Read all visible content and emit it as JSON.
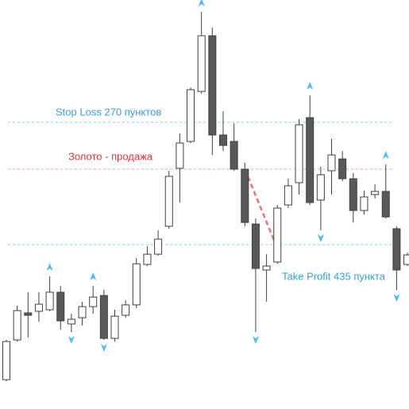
{
  "chart_data": {
    "type": "candlestick",
    "ylim": [
      -1382,
      975
    ],
    "up_color": "#ffffff",
    "down_color": "#595959",
    "outline_color": "#404040",
    "arrow_color": "#4fb8ec",
    "candles": [
      {
        "o": -1213,
        "h": -984,
        "l": -1222,
        "c": -993
      },
      {
        "o": -984,
        "h": -787,
        "l": -993,
        "c": -815
      },
      {
        "o": -828,
        "h": -709,
        "l": -970,
        "c": -842
      },
      {
        "o": -819,
        "h": -709,
        "l": -879,
        "c": -778
      },
      {
        "o": -810,
        "h": -618,
        "l": -819,
        "c": -709
      },
      {
        "o": -709,
        "h": -673,
        "l": -924,
        "c": -874
      },
      {
        "o": -892,
        "h": -833,
        "l": -938,
        "c": -865
      },
      {
        "o": -856,
        "h": -764,
        "l": -901,
        "c": -792
      },
      {
        "o": -792,
        "h": -673,
        "l": -833,
        "c": -737
      },
      {
        "o": -728,
        "h": -696,
        "l": -984,
        "c": -975
      },
      {
        "o": -975,
        "h": -810,
        "l": -993,
        "c": -847
      },
      {
        "o": -842,
        "h": -755,
        "l": -856,
        "c": -782
      },
      {
        "o": -782,
        "h": -513,
        "l": -801,
        "c": -545
      },
      {
        "o": -549,
        "h": -444,
        "l": -558,
        "c": -490
      },
      {
        "o": -490,
        "h": -352,
        "l": -499,
        "c": -403
      },
      {
        "o": -329,
        "h": -9,
        "l": -343,
        "c": -41
      },
      {
        "o": 5,
        "h": 206,
        "l": -192,
        "c": 151
      },
      {
        "o": 160,
        "h": 471,
        "l": 151,
        "c": 458
      },
      {
        "o": 448,
        "h": 906,
        "l": 435,
        "c": 769
      },
      {
        "o": 769,
        "h": 815,
        "l": 82,
        "c": 197
      },
      {
        "o": 197,
        "h": 334,
        "l": 105,
        "c": 137
      },
      {
        "o": 160,
        "h": 265,
        "l": -9,
        "c": 0
      },
      {
        "o": 0,
        "h": 37,
        "l": -329,
        "c": -307
      },
      {
        "o": -316,
        "h": -284,
        "l": -938,
        "c": -572
      },
      {
        "o": -581,
        "h": -490,
        "l": -764,
        "c": -558
      },
      {
        "o": -535,
        "h": -206,
        "l": -545,
        "c": -224
      },
      {
        "o": -206,
        "h": -55,
        "l": -224,
        "c": -96
      },
      {
        "o": -78,
        "h": 288,
        "l": -146,
        "c": 256
      },
      {
        "o": 297,
        "h": 426,
        "l": -206,
        "c": -192
      },
      {
        "o": -178,
        "h": 14,
        "l": -352,
        "c": -32
      },
      {
        "o": -9,
        "h": 174,
        "l": -146,
        "c": 82
      },
      {
        "o": 59,
        "h": 105,
        "l": -69,
        "c": -55
      },
      {
        "o": -55,
        "h": -23,
        "l": -307,
        "c": -238
      },
      {
        "o": -238,
        "h": -124,
        "l": -261,
        "c": -160
      },
      {
        "o": -146,
        "h": -87,
        "l": -169,
        "c": -128
      },
      {
        "o": -128,
        "h": 27,
        "l": -284,
        "c": -275
      },
      {
        "o": -343,
        "h": -329,
        "l": -696,
        "c": -581
      },
      {
        "o": -549,
        "h": -480,
        "l": -558,
        "c": -494
      }
    ],
    "up_arrows": [
      4,
      8,
      18,
      28,
      35
    ],
    "down_arrows": [
      6,
      9,
      23,
      29,
      36
    ],
    "levels": [
      {
        "label": "Stop Loss 270 пунктов",
        "value": 270,
        "color": "#3a9fdc",
        "line_color": "#8ed0f0"
      },
      {
        "label": "Золото - продажа",
        "value": 0,
        "color": "#e8323c",
        "line_color": "#f0a0a4"
      },
      {
        "label": "Take Profit 435 пункта",
        "value": -435,
        "color": "#3a9fdc",
        "line_color": "#8ed0f0"
      }
    ],
    "signal_line": {
      "from": 22,
      "to": 25,
      "color": "#f07070"
    }
  }
}
